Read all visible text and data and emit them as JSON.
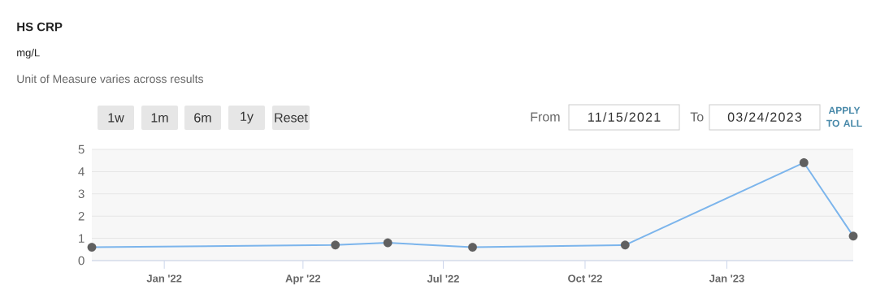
{
  "chart_data": {
    "type": "line",
    "title": "HS CRP",
    "subtitle": "mg/L",
    "annotations": [
      "Unit of Measure varies across results",
      "1w",
      "1m",
      "6m",
      "1y",
      "Reset",
      "From",
      "11/15/2021",
      "To",
      "03/24/2023",
      "APPLY TO ALL"
    ],
    "x": [
      "2021-11-15",
      "2022-04-22",
      "2022-05-26",
      "2022-07-20",
      "2022-10-27",
      "2023-02-20",
      "2023-03-24"
    ],
    "series": [
      {
        "color": "#7cb5ec",
        "values": [
          0.6,
          0.7,
          0.8,
          0.6,
          0.7,
          4.4,
          1.1
        ]
      }
    ],
    "xlim": [
      "2021-11-15",
      "2023-03-24"
    ],
    "xticks": [
      {
        "value": "2022-01-01",
        "label": "Jan '22"
      },
      {
        "value": "2022-04-01",
        "label": "Apr '22"
      },
      {
        "value": "2022-07-01",
        "label": "Jul '22"
      },
      {
        "value": "2022-10-01",
        "label": "Oct '22"
      },
      {
        "value": "2023-01-01",
        "label": "Jan '23"
      }
    ],
    "ylim": [
      0,
      5
    ],
    "yticks": [
      0,
      1,
      2,
      3,
      4,
      5
    ],
    "grid": "y",
    "marker": "circle",
    "line_style": "solid"
  }
}
